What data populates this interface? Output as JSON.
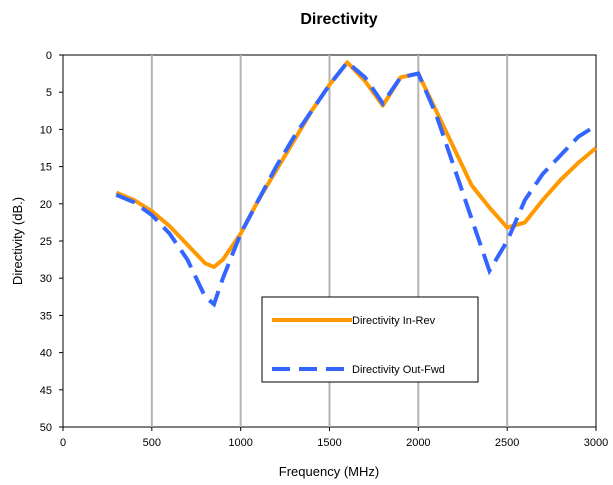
{
  "chart_data": {
    "type": "line",
    "title": "Directivity",
    "xlabel": "Frequency (MHz)",
    "ylabel": "Directivity (dB.)",
    "xlim": [
      0,
      3000
    ],
    "ylim": [
      0,
      50
    ],
    "y_inverted": true,
    "x_ticks": [
      "0",
      "500",
      "1000",
      "1500",
      "2000",
      "2500",
      "3000"
    ],
    "y_ticks": [
      "0",
      "5",
      "10",
      "15",
      "20",
      "25",
      "30",
      "35",
      "40",
      "45",
      "50"
    ],
    "grid": "vertical",
    "legend": "center-right",
    "series": [
      {
        "name": "Directivity In-Rev",
        "color": "#FF9900",
        "style": "solid",
        "x": [
          300,
          400,
          500,
          600,
          700,
          800,
          850,
          900,
          1000,
          1100,
          1200,
          1300,
          1400,
          1500,
          1600,
          1700,
          1800,
          1900,
          2000,
          2100,
          2200,
          2300,
          2400,
          2500,
          2600,
          2700,
          2800,
          2900,
          3000
        ],
        "y": [
          18.5,
          19.5,
          21,
          23,
          25.5,
          28,
          28.5,
          27.5,
          24,
          19.5,
          15.5,
          11.5,
          7.5,
          4,
          1,
          3.5,
          6.8,
          3,
          2.5,
          7.5,
          12.5,
          17.5,
          20.5,
          23.2,
          22.5,
          19.5,
          16.8,
          14.5,
          12.5
        ]
      },
      {
        "name": "Directivity Out-Fwd",
        "color": "#3366FF",
        "style": "dashed",
        "x": [
          300,
          400,
          500,
          600,
          700,
          800,
          850,
          900,
          1000,
          1100,
          1200,
          1300,
          1400,
          1500,
          1600,
          1700,
          1800,
          1900,
          2000,
          2100,
          2200,
          2300,
          2400,
          2500,
          2600,
          2700,
          2800,
          2900,
          3000
        ],
        "y": [
          18.8,
          19.8,
          21.5,
          24,
          27.5,
          32.5,
          33.5,
          30,
          24,
          19.5,
          15,
          11,
          7.5,
          4,
          1,
          3,
          6.5,
          3,
          2.5,
          8,
          15,
          22,
          29,
          25,
          19.5,
          16,
          13.5,
          11,
          9.5
        ]
      }
    ]
  }
}
